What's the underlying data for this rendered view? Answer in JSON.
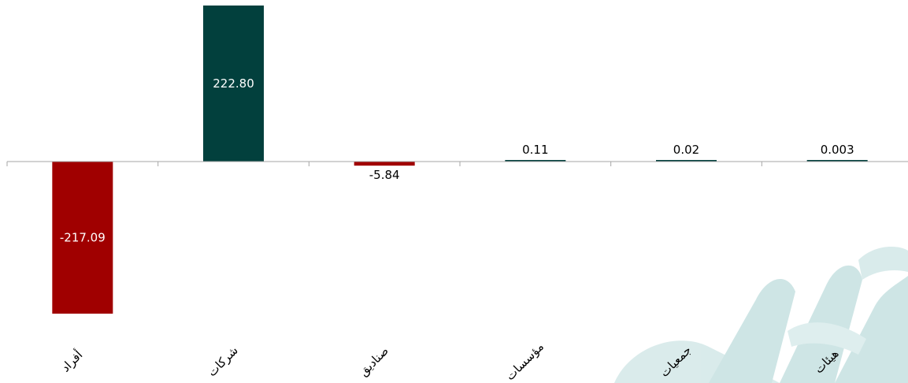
{
  "chart_data": {
    "type": "bar",
    "categories": [
      "أفراد",
      "شركات",
      "صناديق",
      "مؤسسات",
      "جمعيات",
      "هيئات"
    ],
    "values": [
      -217.09,
      222.8,
      -5.84,
      0.11,
      0.02,
      0.003
    ],
    "value_labels": [
      "-217.09",
      "222.80",
      "-5.84",
      "0.11",
      "0.02",
      "0.003"
    ],
    "title": "",
    "xlabel": "",
    "ylabel": "",
    "ylim": [
      -217.09,
      222.8
    ],
    "grid": false,
    "colors": {
      "positive": "#02403d",
      "negative": "#a00000",
      "axis": "#a6a6a6",
      "label_inside": "#ffffff",
      "label_outside": "#000000",
      "watermark": "#c8e2e2"
    }
  }
}
